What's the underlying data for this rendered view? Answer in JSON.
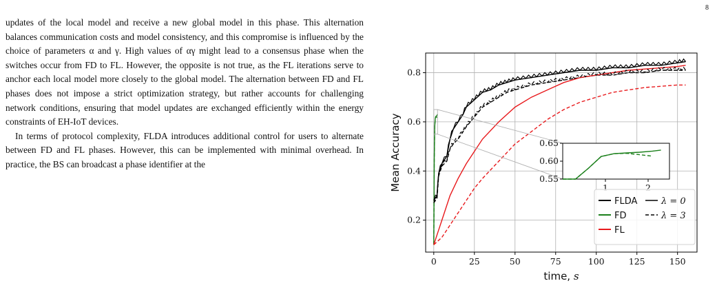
{
  "page": {
    "number": "8"
  },
  "body_text": {
    "paragraph_1": "updates of the local model and receive a new global model in this phase. This alternation balances communication costs and model consistency, and this compromise is influenced by the choice of parameters α and γ. High values of αγ might lead to a consensus phase when the switches occur from FD to FL. However, the opposite is not true, as the FL iterations serve to anchor each local model more closely to the global model. The alternation between FD and FL phases does not impose a strict optimization strategy, but rather accounts for challenging network conditions, ensuring that model updates are exchanged efficiently within the energy constraints of EH-IoT devices.",
    "paragraph_2": "In terms of protocol complexity, FLDA introduces additional control for users to alternate between FD and FL phases. However, this can be implemented with minimal overhead. In practice, the BS can broadcast a phase identifier at the"
  },
  "chart_data": {
    "type": "line",
    "xlabel": "time, s",
    "ylabel": "Mean Accuracy",
    "xlim": [
      -5,
      162
    ],
    "ylim": [
      0.07,
      0.88
    ],
    "xticks": [
      0,
      25,
      50,
      75,
      100,
      125,
      150
    ],
    "yticks": [
      0.2,
      0.4,
      0.6,
      0.8
    ],
    "grid": true,
    "legend_placement": "bottom-right",
    "legend_method": [
      "FLDA",
      "FD",
      "FL"
    ],
    "legend_lambda": [
      "λ = 0",
      "λ = 3"
    ],
    "colors": {
      "FLDA": "#000000",
      "FD": "#1a7f1a",
      "FL": "#e8191c",
      "zoom_lines": "#b0b0b0"
    },
    "series": [
      {
        "method": "FLDA",
        "lambda": "0",
        "style": "solid",
        "x": [
          0,
          2,
          3,
          5,
          8,
          10,
          12,
          15,
          18,
          20,
          25,
          30,
          35,
          40,
          45,
          50,
          60,
          70,
          80,
          90,
          100,
          110,
          120,
          130,
          140,
          150,
          155
        ],
        "y": [
          0.28,
          0.3,
          0.39,
          0.43,
          0.46,
          0.53,
          0.57,
          0.6,
          0.63,
          0.66,
          0.69,
          0.72,
          0.73,
          0.75,
          0.76,
          0.77,
          0.78,
          0.79,
          0.8,
          0.81,
          0.81,
          0.82,
          0.82,
          0.83,
          0.83,
          0.84,
          0.845
        ]
      },
      {
        "method": "FLDA",
        "lambda": "3",
        "style": "dashed",
        "x": [
          0,
          2,
          3,
          5,
          8,
          10,
          12,
          15,
          18,
          20,
          25,
          30,
          35,
          40,
          45,
          50,
          60,
          70,
          80,
          90,
          100,
          110,
          120,
          130,
          140,
          150,
          155
        ],
        "y": [
          0.27,
          0.29,
          0.38,
          0.42,
          0.44,
          0.49,
          0.51,
          0.53,
          0.56,
          0.58,
          0.62,
          0.66,
          0.68,
          0.7,
          0.72,
          0.73,
          0.75,
          0.76,
          0.77,
          0.78,
          0.79,
          0.79,
          0.8,
          0.8,
          0.81,
          0.81,
          0.81
        ]
      },
      {
        "method": "FD",
        "lambda": "0",
        "style": "solid",
        "x": [
          0,
          0.3,
          0.6,
          0.9,
          1.2,
          1.5,
          1.8,
          2.1,
          2.3
        ],
        "y": [
          0.1,
          0.45,
          0.58,
          0.613,
          0.621,
          0.623,
          0.625,
          0.628,
          0.631
        ]
      },
      {
        "method": "FD",
        "lambda": "3",
        "style": "dashed",
        "x": [
          0,
          0.3,
          0.6,
          0.9,
          1.2,
          1.5,
          1.8,
          2.1
        ],
        "y": [
          0.1,
          0.45,
          0.58,
          0.613,
          0.621,
          0.622,
          0.618,
          0.614
        ]
      },
      {
        "method": "FL",
        "lambda": "0",
        "style": "solid",
        "x": [
          0,
          5,
          10,
          15,
          20,
          25,
          30,
          40,
          50,
          60,
          70,
          80,
          90,
          100,
          110,
          120,
          130,
          140,
          150,
          155
        ],
        "y": [
          0.1,
          0.2,
          0.3,
          0.37,
          0.43,
          0.48,
          0.53,
          0.6,
          0.66,
          0.7,
          0.73,
          0.76,
          0.78,
          0.79,
          0.8,
          0.81,
          0.815,
          0.82,
          0.825,
          0.83
        ]
      },
      {
        "method": "FL",
        "lambda": "3",
        "style": "dashed",
        "x": [
          0,
          5,
          10,
          15,
          20,
          25,
          30,
          40,
          50,
          60,
          70,
          80,
          90,
          100,
          110,
          120,
          130,
          140,
          150,
          155
        ],
        "y": [
          0.1,
          0.13,
          0.18,
          0.23,
          0.28,
          0.33,
          0.37,
          0.44,
          0.51,
          0.56,
          0.61,
          0.65,
          0.68,
          0.7,
          0.72,
          0.73,
          0.74,
          0.745,
          0.75,
          0.75
        ]
      }
    ],
    "inset": {
      "xlim": [
        0,
        2.5
      ],
      "ylim": [
        0.55,
        0.65
      ],
      "xticks": [
        1,
        2
      ],
      "yticks": [
        0.55,
        0.6,
        0.65
      ],
      "zoom_region_x": [
        0,
        2.3
      ],
      "zoom_region_y": [
        0.55,
        0.65
      ]
    }
  }
}
